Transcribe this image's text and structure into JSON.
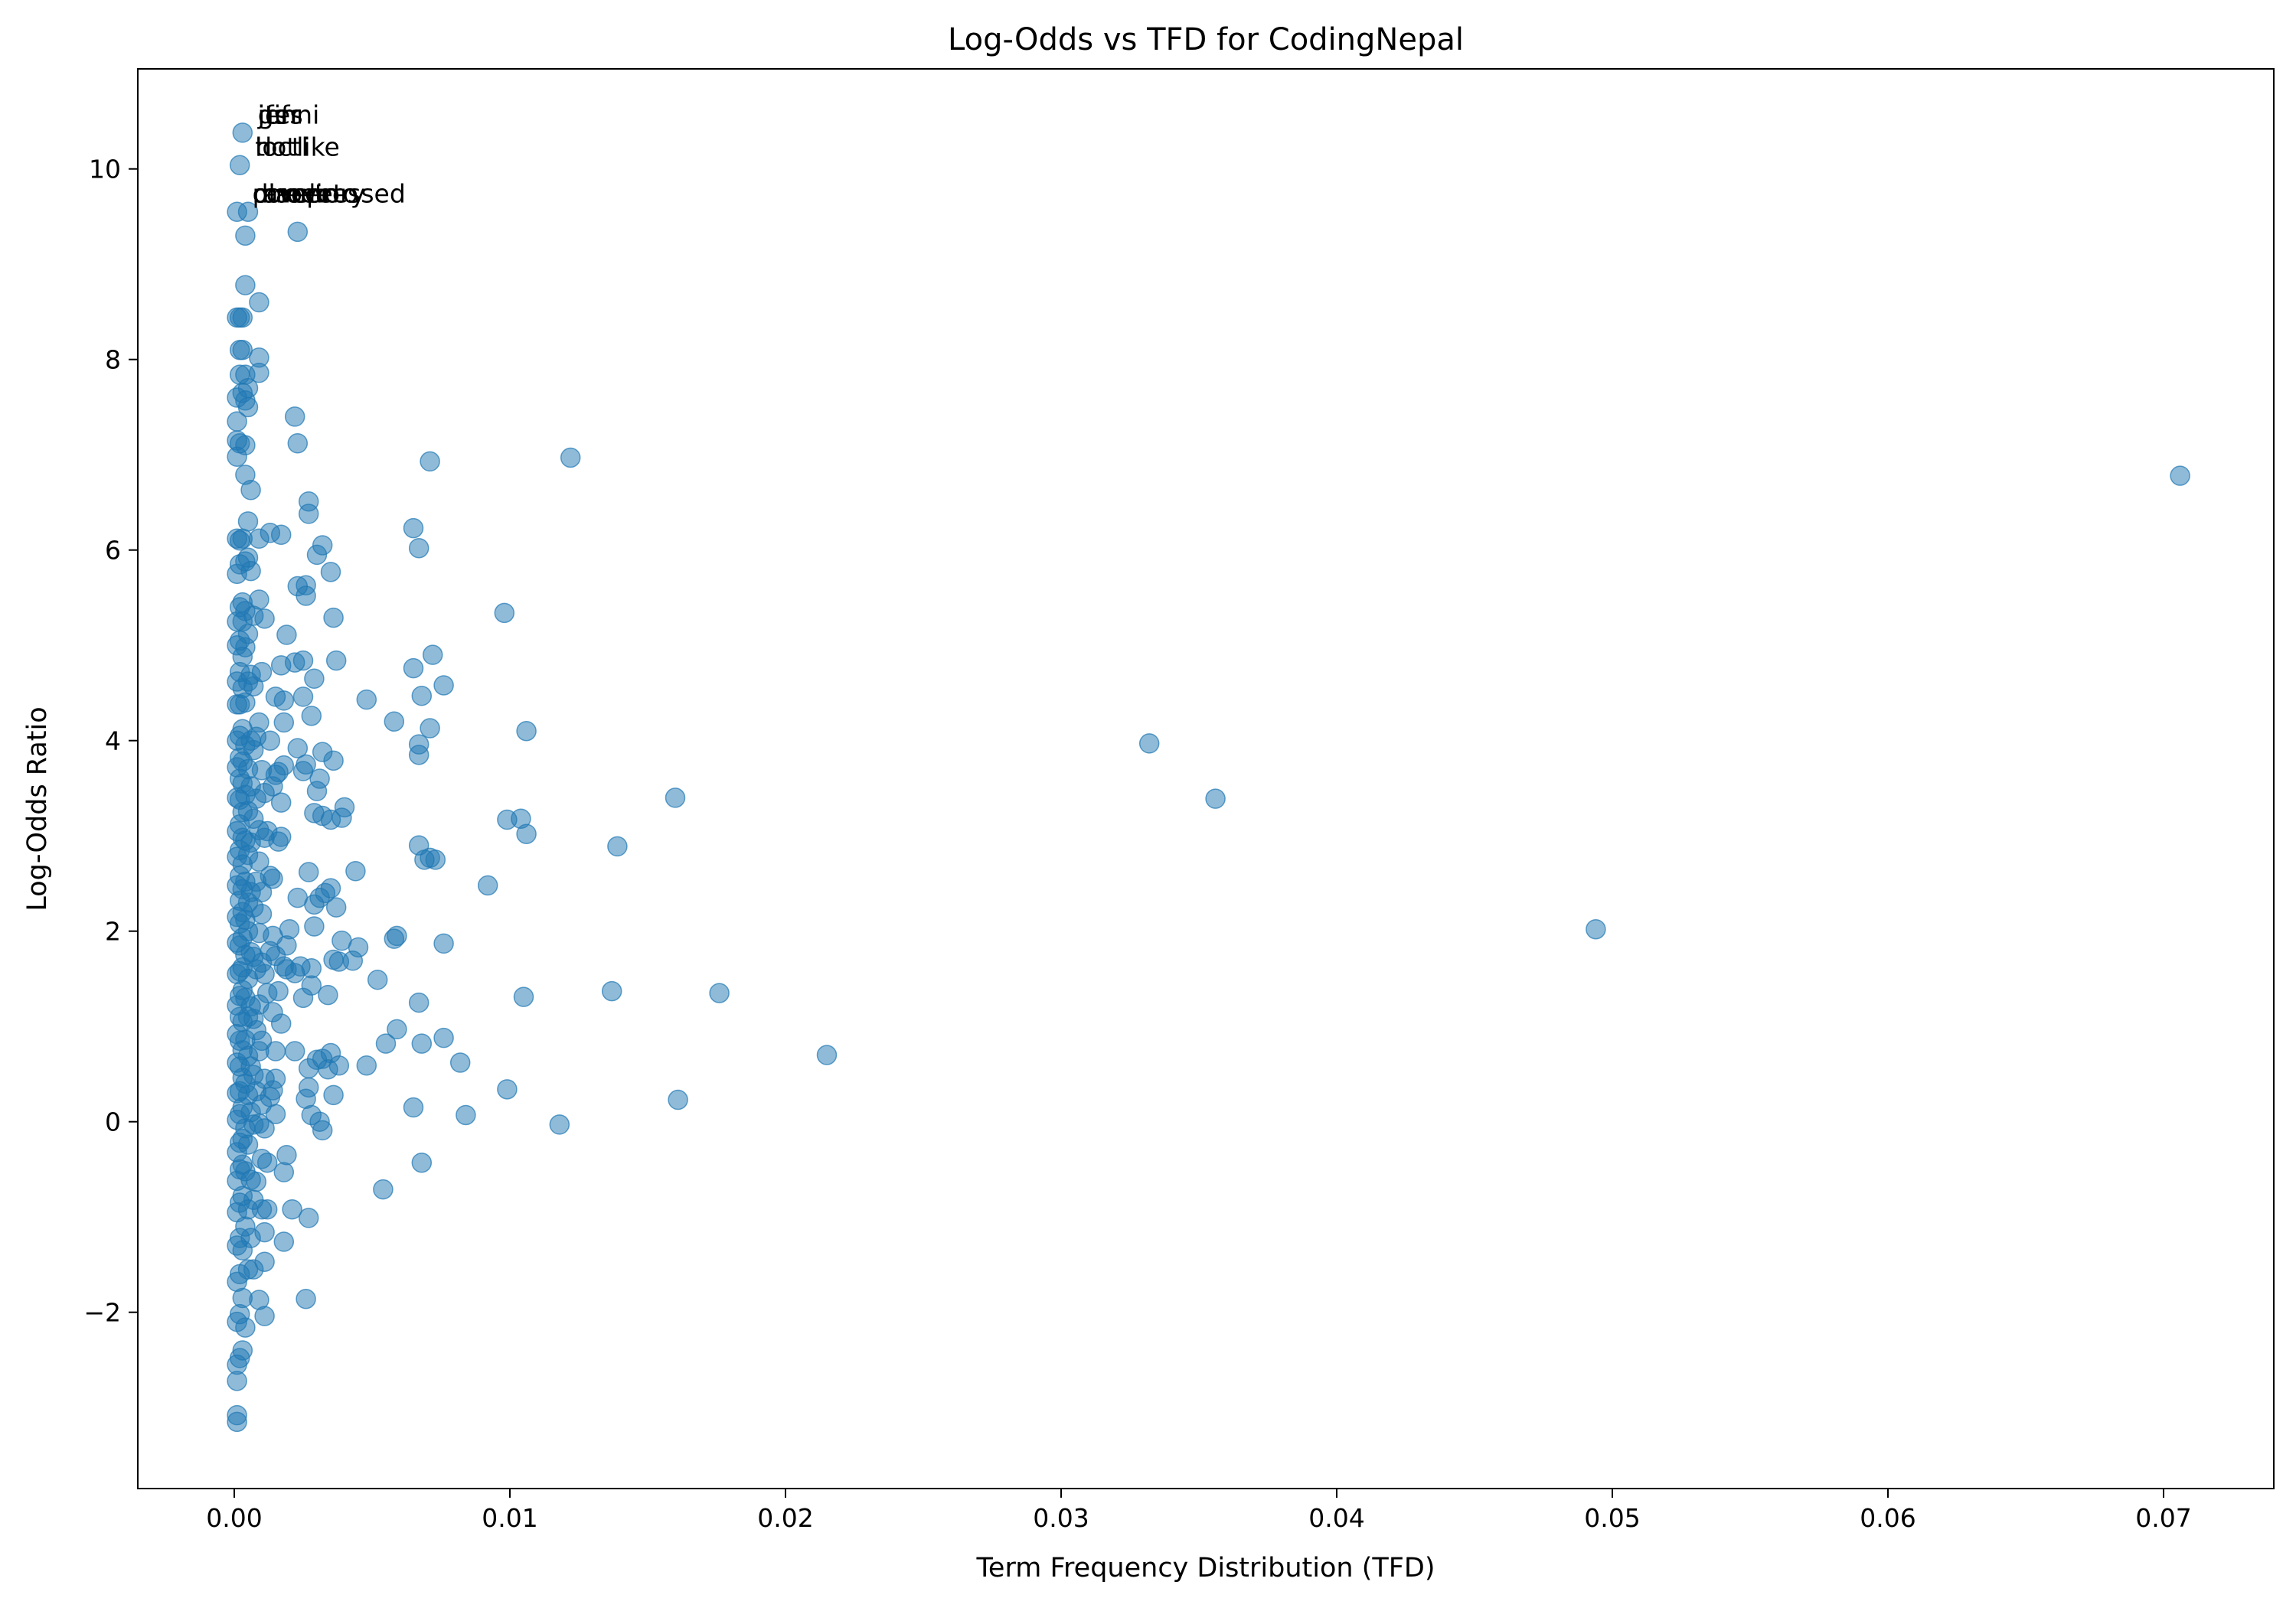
{
  "chart_data": {
    "type": "scatter",
    "title": "Log-Odds vs TFD for CodingNepal",
    "xlabel": "Term Frequency Distribution (TFD)",
    "ylabel": "Log-Odds Ratio",
    "xlim": [
      -0.0035,
      0.074
    ],
    "ylim": [
      -3.85,
      11.05
    ],
    "xticks": [
      0.0,
      0.01,
      0.02,
      0.03,
      0.04,
      0.05,
      0.06,
      0.07
    ],
    "xtick_labels": [
      "0.00",
      "0.01",
      "0.02",
      "0.03",
      "0.04",
      "0.05",
      "0.06",
      "0.07"
    ],
    "yticks": [
      -2,
      0,
      2,
      4,
      6,
      8,
      10
    ],
    "ytick_labels": [
      "−2",
      "0",
      "2",
      "4",
      "6",
      "8",
      "10"
    ],
    "grid": false,
    "legend": "none",
    "color": "#1f77b4",
    "alpha": 0.5,
    "annotations": [
      {
        "text": "jenni",
        "x": 0.0003,
        "y": 10.38
      },
      {
        "text": "gifs",
        "x": 0.0003,
        "y": 10.38
      },
      {
        "text": "ifs",
        "x": 0.0003,
        "y": 10.38
      },
      {
        "text": "iter",
        "x": 0.0003,
        "y": 10.38
      },
      {
        "text": "hotlike",
        "x": 0.0002,
        "y": 10.04
      },
      {
        "text": "ioctl",
        "x": 0.0002,
        "y": 10.04
      },
      {
        "text": "tl",
        "x": 0.0002,
        "y": 10.04
      },
      {
        "text": "placer",
        "x": 0.0001,
        "y": 9.55
      },
      {
        "text": "ravelin",
        "x": 0.0001,
        "y": 9.55
      },
      {
        "text": "rmoveto",
        "x": 0.0001,
        "y": 9.55
      },
      {
        "text": "directory",
        "x": 0.0001,
        "y": 9.55
      },
      {
        "text": "compressed",
        "x": 0.0001,
        "y": 9.55
      }
    ],
    "points": [
      [
        0.0706,
        6.78
      ],
      [
        0.0494,
        2.02
      ],
      [
        0.0356,
        3.39
      ],
      [
        0.0332,
        3.97
      ],
      [
        0.0215,
        0.7
      ],
      [
        0.0176,
        1.35
      ],
      [
        0.0161,
        0.23
      ],
      [
        0.016,
        3.4
      ],
      [
        0.0139,
        2.89
      ],
      [
        0.0137,
        1.37
      ],
      [
        0.0122,
        6.97
      ],
      [
        0.0118,
        -0.03
      ],
      [
        0.0106,
        4.1
      ],
      [
        0.0106,
        3.02
      ],
      [
        0.0105,
        1.31
      ],
      [
        0.0104,
        3.18
      ],
      [
        0.0099,
        3.17
      ],
      [
        0.0099,
        0.34
      ],
      [
        0.0098,
        5.34
      ],
      [
        0.0092,
        2.48
      ],
      [
        0.0084,
        0.07
      ],
      [
        0.0082,
        0.62
      ],
      [
        0.0076,
        4.58
      ],
      [
        0.0076,
        1.87
      ],
      [
        0.0076,
        0.88
      ],
      [
        0.0073,
        2.75
      ],
      [
        0.0072,
        4.9
      ],
      [
        0.0071,
        6.93
      ],
      [
        0.0071,
        4.13
      ],
      [
        0.0071,
        2.77
      ],
      [
        0.0069,
        2.75
      ],
      [
        0.0068,
        4.47
      ],
      [
        0.0068,
        0.82
      ],
      [
        0.0068,
        -0.43
      ],
      [
        0.0067,
        6.02
      ],
      [
        0.0067,
        3.96
      ],
      [
        0.0067,
        3.85
      ],
      [
        0.0067,
        2.9
      ],
      [
        0.0067,
        1.25
      ],
      [
        0.0065,
        6.23
      ],
      [
        0.0065,
        4.76
      ],
      [
        0.0065,
        0.15
      ],
      [
        0.0059,
        1.95
      ],
      [
        0.0059,
        0.97
      ],
      [
        0.0058,
        4.2
      ],
      [
        0.0058,
        1.92
      ],
      [
        0.0055,
        0.82
      ],
      [
        0.0054,
        -0.71
      ],
      [
        0.0052,
        1.49
      ],
      [
        0.0048,
        4.43
      ],
      [
        0.0048,
        0.59
      ],
      [
        0.0045,
        1.83
      ],
      [
        0.0044,
        2.63
      ],
      [
        0.0043,
        1.69
      ],
      [
        0.004,
        3.3
      ],
      [
        0.0039,
        1.9
      ],
      [
        0.0039,
        3.19
      ],
      [
        0.0038,
        1.68
      ],
      [
        0.0038,
        0.59
      ],
      [
        0.0037,
        4.84
      ],
      [
        0.0037,
        2.25
      ],
      [
        0.0036,
        5.29
      ],
      [
        0.0036,
        3.79
      ],
      [
        0.0036,
        1.7
      ],
      [
        0.0036,
        0.28
      ],
      [
        0.0035,
        5.77
      ],
      [
        0.0035,
        3.17
      ],
      [
        0.0035,
        2.45
      ],
      [
        0.0035,
        0.72
      ],
      [
        0.0034,
        1.33
      ],
      [
        0.0034,
        0.55
      ],
      [
        0.0033,
        2.4
      ],
      [
        0.0032,
        6.05
      ],
      [
        0.0032,
        3.88
      ],
      [
        0.0032,
        3.21
      ],
      [
        0.0032,
        0.66
      ],
      [
        0.0032,
        -0.09
      ],
      [
        0.0031,
        3.6
      ],
      [
        0.0031,
        2.35
      ],
      [
        0.0031,
        0.0
      ],
      [
        0.003,
        5.95
      ],
      [
        0.003,
        3.47
      ],
      [
        0.003,
        0.65
      ],
      [
        0.0029,
        4.65
      ],
      [
        0.0029,
        3.24
      ],
      [
        0.0029,
        2.28
      ],
      [
        0.0029,
        2.05
      ],
      [
        0.0028,
        4.26
      ],
      [
        0.0028,
        1.61
      ],
      [
        0.0028,
        1.43
      ],
      [
        0.0028,
        0.07
      ],
      [
        0.0027,
        6.51
      ],
      [
        0.0027,
        6.38
      ],
      [
        0.0027,
        2.62
      ],
      [
        0.0027,
        0.56
      ],
      [
        0.0027,
        0.36
      ],
      [
        0.0027,
        -1.01
      ],
      [
        0.0026,
        5.63
      ],
      [
        0.0026,
        5.52
      ],
      [
        0.0026,
        3.75
      ],
      [
        0.0026,
        0.24
      ],
      [
        0.0026,
        -1.86
      ],
      [
        0.0025,
        4.84
      ],
      [
        0.0025,
        4.46
      ],
      [
        0.0025,
        3.68
      ],
      [
        0.0025,
        1.3
      ],
      [
        0.0024,
        1.63
      ],
      [
        0.0023,
        9.34
      ],
      [
        0.0023,
        7.12
      ],
      [
        0.0023,
        5.62
      ],
      [
        0.0023,
        3.92
      ],
      [
        0.0023,
        2.35
      ],
      [
        0.0022,
        7.4
      ],
      [
        0.0022,
        4.82
      ],
      [
        0.0022,
        1.56
      ],
      [
        0.0022,
        0.74
      ],
      [
        0.0021,
        -0.92
      ],
      [
        0.002,
        2.02
      ],
      [
        0.0019,
        5.11
      ],
      [
        0.0019,
        1.85
      ],
      [
        0.0019,
        1.6
      ],
      [
        0.0019,
        -0.35
      ],
      [
        0.0018,
        4.42
      ],
      [
        0.0018,
        4.19
      ],
      [
        0.0018,
        3.74
      ],
      [
        0.0018,
        1.63
      ],
      [
        0.0018,
        -0.53
      ],
      [
        0.0018,
        -1.26
      ],
      [
        0.0017,
        6.16
      ],
      [
        0.0017,
        4.79
      ],
      [
        0.0017,
        3.35
      ],
      [
        0.0017,
        2.99
      ],
      [
        0.0017,
        1.03
      ],
      [
        0.0016,
        3.67
      ],
      [
        0.0016,
        2.94
      ],
      [
        0.0016,
        1.37
      ],
      [
        0.0015,
        4.46
      ],
      [
        0.0015,
        3.64
      ],
      [
        0.0015,
        1.74
      ],
      [
        0.0015,
        0.74
      ],
      [
        0.0015,
        0.45
      ],
      [
        0.0015,
        0.08
      ],
      [
        0.0014,
        3.52
      ],
      [
        0.0014,
        2.55
      ],
      [
        0.0014,
        1.95
      ],
      [
        0.0014,
        1.15
      ],
      [
        0.0014,
        0.33
      ],
      [
        0.0013,
        6.18
      ],
      [
        0.0013,
        4.0
      ],
      [
        0.0013,
        2.58
      ],
      [
        0.0013,
        1.79
      ],
      [
        0.0013,
        0.26
      ],
      [
        0.0012,
        3.05
      ],
      [
        0.0012,
        1.35
      ],
      [
        0.0012,
        -0.43
      ],
      [
        0.0012,
        -0.92
      ],
      [
        0.0011,
        5.28
      ],
      [
        0.0011,
        3.45
      ],
      [
        0.0011,
        2.98
      ],
      [
        0.0011,
        1.55
      ],
      [
        0.0011,
        0.45
      ],
      [
        0.0011,
        -0.07
      ],
      [
        0.0011,
        -1.16
      ],
      [
        0.0011,
        -1.47
      ],
      [
        0.0011,
        -2.04
      ],
      [
        0.001,
        4.72
      ],
      [
        0.001,
        3.69
      ],
      [
        0.001,
        2.41
      ],
      [
        0.001,
        2.18
      ],
      [
        0.001,
        1.67
      ],
      [
        0.001,
        0.85
      ],
      [
        0.001,
        0.18
      ],
      [
        0.001,
        -0.39
      ],
      [
        0.001,
        -0.92
      ],
      [
        0.0009,
        8.6
      ],
      [
        0.0009,
        8.02
      ],
      [
        0.0009,
        7.86
      ],
      [
        0.0009,
        6.12
      ],
      [
        0.0009,
        5.48
      ],
      [
        0.0009,
        4.19
      ],
      [
        0.0009,
        3.06
      ],
      [
        0.0009,
        2.73
      ],
      [
        0.0009,
        1.98
      ],
      [
        0.0009,
        1.23
      ],
      [
        0.0009,
        0.74
      ],
      [
        0.0009,
        -0.02
      ],
      [
        0.0009,
        -1.87
      ],
      [
        0.0008,
        4.04
      ],
      [
        0.0008,
        3.39
      ],
      [
        0.0008,
        2.52
      ],
      [
        0.0008,
        1.6
      ],
      [
        0.0008,
        0.96
      ],
      [
        0.0008,
        0.32
      ],
      [
        0.0008,
        -0.63
      ],
      [
        0.0007,
        5.31
      ],
      [
        0.0007,
        4.57
      ],
      [
        0.0007,
        3.9
      ],
      [
        0.0007,
        3.18
      ],
      [
        0.0007,
        2.25
      ],
      [
        0.0007,
        1.73
      ],
      [
        0.0007,
        1.08
      ],
      [
        0.0007,
        0.49
      ],
      [
        0.0007,
        -0.03
      ],
      [
        0.0007,
        -0.82
      ],
      [
        0.0007,
        -1.55
      ],
      [
        0.0006,
        6.63
      ],
      [
        0.0006,
        5.78
      ],
      [
        0.0006,
        4.69
      ],
      [
        0.0006,
        4.0
      ],
      [
        0.0006,
        3.52
      ],
      [
        0.0006,
        2.93
      ],
      [
        0.0006,
        2.41
      ],
      [
        0.0006,
        1.78
      ],
      [
        0.0006,
        1.21
      ],
      [
        0.0006,
        0.58
      ],
      [
        0.0006,
        0.1
      ],
      [
        0.0006,
        -0.61
      ],
      [
        0.0006,
        -1.22
      ],
      [
        0.0005,
        9.55
      ],
      [
        0.0005,
        7.7
      ],
      [
        0.0005,
        7.5
      ],
      [
        0.0005,
        6.3
      ],
      [
        0.0005,
        5.92
      ],
      [
        0.0005,
        5.12
      ],
      [
        0.0005,
        4.62
      ],
      [
        0.0005,
        3.7
      ],
      [
        0.0005,
        3.26
      ],
      [
        0.0005,
        2.8
      ],
      [
        0.0005,
        2.3
      ],
      [
        0.0005,
        2.0
      ],
      [
        0.0005,
        1.5
      ],
      [
        0.0005,
        1.1
      ],
      [
        0.0005,
        0.69
      ],
      [
        0.0005,
        0.28
      ],
      [
        0.0005,
        -0.24
      ],
      [
        0.0005,
        -0.92
      ],
      [
        0.0005,
        -1.55
      ],
      [
        0.0004,
        9.3
      ],
      [
        0.0004,
        8.78
      ],
      [
        0.0004,
        7.84
      ],
      [
        0.0004,
        7.57
      ],
      [
        0.0004,
        7.1
      ],
      [
        0.0004,
        6.79
      ],
      [
        0.0004,
        5.88
      ],
      [
        0.0004,
        5.36
      ],
      [
        0.0004,
        4.98
      ],
      [
        0.0004,
        4.4
      ],
      [
        0.0004,
        3.95
      ],
      [
        0.0004,
        3.43
      ],
      [
        0.0004,
        2.95
      ],
      [
        0.0004,
        2.52
      ],
      [
        0.0004,
        2.12
      ],
      [
        0.0004,
        1.75
      ],
      [
        0.0004,
        1.3
      ],
      [
        0.0004,
        0.86
      ],
      [
        0.0004,
        0.4
      ],
      [
        0.0004,
        -0.07
      ],
      [
        0.0004,
        -0.52
      ],
      [
        0.0004,
        -1.1
      ],
      [
        0.0004,
        -2.16
      ],
      [
        0.0003,
        10.38
      ],
      [
        0.0003,
        8.44
      ],
      [
        0.0003,
        8.1
      ],
      [
        0.0003,
        7.65
      ],
      [
        0.0003,
        6.12
      ],
      [
        0.0003,
        5.45
      ],
      [
        0.0003,
        5.25
      ],
      [
        0.0003,
        4.88
      ],
      [
        0.0003,
        4.55
      ],
      [
        0.0003,
        4.12
      ],
      [
        0.0003,
        3.78
      ],
      [
        0.0003,
        3.55
      ],
      [
        0.0003,
        3.25
      ],
      [
        0.0003,
        2.98
      ],
      [
        0.0003,
        2.7
      ],
      [
        0.0003,
        2.44
      ],
      [
        0.0003,
        2.2
      ],
      [
        0.0003,
        1.93
      ],
      [
        0.0003,
        1.62
      ],
      [
        0.0003,
        1.38
      ],
      [
        0.0003,
        1.05
      ],
      [
        0.0003,
        0.75
      ],
      [
        0.0003,
        0.46
      ],
      [
        0.0003,
        0.15
      ],
      [
        0.0003,
        -0.18
      ],
      [
        0.0003,
        -0.45
      ],
      [
        0.0003,
        -0.78
      ],
      [
        0.0003,
        -1.35
      ],
      [
        0.0003,
        -1.85
      ],
      [
        0.0003,
        -2.4
      ],
      [
        0.0002,
        10.04
      ],
      [
        0.0002,
        8.44
      ],
      [
        0.0002,
        8.1
      ],
      [
        0.0002,
        7.84
      ],
      [
        0.0002,
        7.12
      ],
      [
        0.0002,
        6.1
      ],
      [
        0.0002,
        5.85
      ],
      [
        0.0002,
        5.4
      ],
      [
        0.0002,
        5.05
      ],
      [
        0.0002,
        4.72
      ],
      [
        0.0002,
        4.38
      ],
      [
        0.0002,
        4.05
      ],
      [
        0.0002,
        3.82
      ],
      [
        0.0002,
        3.6
      ],
      [
        0.0002,
        3.38
      ],
      [
        0.0002,
        3.12
      ],
      [
        0.0002,
        2.85
      ],
      [
        0.0002,
        2.58
      ],
      [
        0.0002,
        2.32
      ],
      [
        0.0002,
        2.08
      ],
      [
        0.0002,
        1.85
      ],
      [
        0.0002,
        1.58
      ],
      [
        0.0002,
        1.32
      ],
      [
        0.0002,
        1.1
      ],
      [
        0.0002,
        0.85
      ],
      [
        0.0002,
        0.58
      ],
      [
        0.0002,
        0.32
      ],
      [
        0.0002,
        0.08
      ],
      [
        0.0002,
        -0.22
      ],
      [
        0.0002,
        -0.5
      ],
      [
        0.0002,
        -0.85
      ],
      [
        0.0002,
        -1.22
      ],
      [
        0.0002,
        -1.6
      ],
      [
        0.0002,
        -2.02
      ],
      [
        0.0002,
        -2.48
      ],
      [
        0.0001,
        9.55
      ],
      [
        0.0001,
        8.44
      ],
      [
        0.0001,
        7.6
      ],
      [
        0.0001,
        7.35
      ],
      [
        0.0001,
        7.15
      ],
      [
        0.0001,
        6.98
      ],
      [
        0.0001,
        6.12
      ],
      [
        0.0001,
        5.75
      ],
      [
        0.0001,
        5.25
      ],
      [
        0.0001,
        5.0
      ],
      [
        0.0001,
        4.62
      ],
      [
        0.0001,
        4.38
      ],
      [
        0.0001,
        4.0
      ],
      [
        0.0001,
        3.72
      ],
      [
        0.0001,
        3.4
      ],
      [
        0.0001,
        3.05
      ],
      [
        0.0001,
        2.78
      ],
      [
        0.0001,
        2.48
      ],
      [
        0.0001,
        2.15
      ],
      [
        0.0001,
        1.88
      ],
      [
        0.0001,
        1.55
      ],
      [
        0.0001,
        1.22
      ],
      [
        0.0001,
        0.92
      ],
      [
        0.0001,
        0.62
      ],
      [
        0.0001,
        0.3
      ],
      [
        0.0001,
        0.02
      ],
      [
        0.0001,
        -0.32
      ],
      [
        0.0001,
        -0.62
      ],
      [
        0.0001,
        -0.95
      ],
      [
        0.0001,
        -1.3
      ],
      [
        0.0001,
        -1.68
      ],
      [
        0.0001,
        -2.1
      ],
      [
        0.0001,
        -2.55
      ],
      [
        0.0001,
        -2.72
      ],
      [
        0.0001,
        -3.08
      ],
      [
        0.0001,
        -3.15
      ]
    ]
  }
}
